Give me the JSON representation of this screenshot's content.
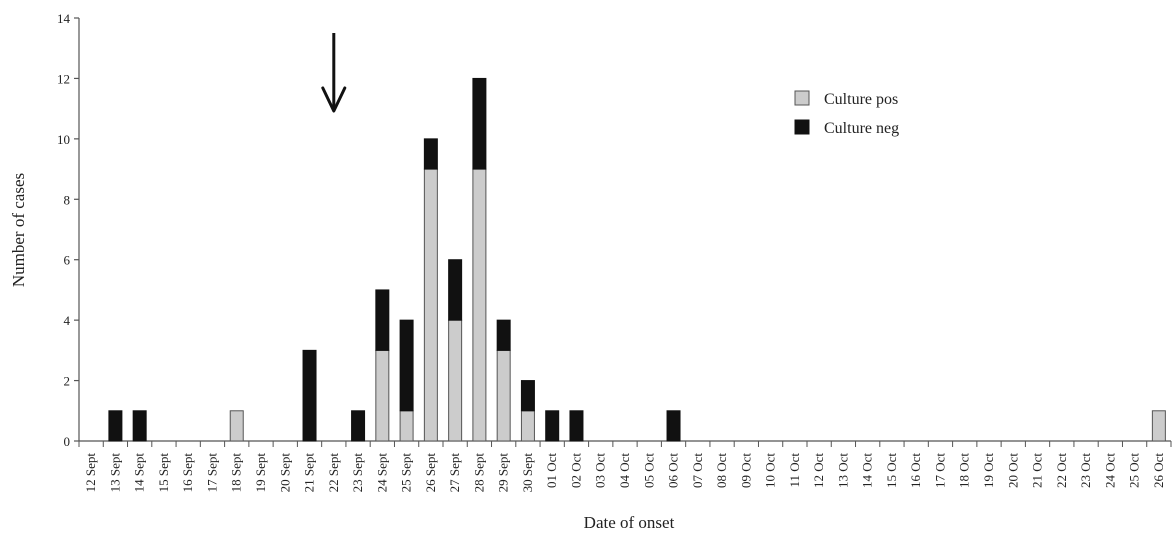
{
  "chart_data": {
    "type": "bar",
    "stacked": true,
    "xlabel": "Date of onset",
    "ylabel": "Number of cases",
    "ylim": [
      0,
      14
    ],
    "yticks": [
      0,
      2,
      4,
      6,
      8,
      10,
      12,
      14
    ],
    "grid": false,
    "legend_position": "top-right",
    "annotation": {
      "type": "arrow-down",
      "category": "22 Sept"
    },
    "categories": [
      "12 Sept",
      "13 Sept",
      "14 Sept",
      "15 Sept",
      "16 Sept",
      "17 Sept",
      "18 Sept",
      "19 Sept",
      "20 Sept",
      "21 Sept",
      "22 Sept",
      "23 Sept",
      "24 Sept",
      "25 Sept",
      "26 Sept",
      "27 Sept",
      "28 Sept",
      "29 Sept",
      "30 Sept",
      "01 Oct",
      "02 Oct",
      "03 Oct",
      "04 Oct",
      "05 Oct",
      "06 Oct",
      "07 Oct",
      "08 Oct",
      "09 Oct",
      "10 Oct",
      "11 Oct",
      "12 Oct",
      "13 Oct",
      "14 Oct",
      "15 Oct",
      "16 Oct",
      "17 Oct",
      "18 Oct",
      "19 Oct",
      "20 Oct",
      "21 Oct",
      "22 Oct",
      "23 Oct",
      "24 Oct",
      "25 Oct",
      "26 Oct"
    ],
    "series": [
      {
        "name": "Culture pos",
        "color": "#cccccc",
        "values": [
          0,
          0,
          0,
          0,
          0,
          0,
          1,
          0,
          0,
          0,
          0,
          0,
          3,
          1,
          9,
          4,
          9,
          3,
          1,
          0,
          0,
          0,
          0,
          0,
          0,
          0,
          0,
          0,
          0,
          0,
          0,
          0,
          0,
          0,
          0,
          0,
          0,
          0,
          0,
          0,
          0,
          0,
          0,
          0,
          1
        ]
      },
      {
        "name": "Culture neg",
        "color": "#111111",
        "values": [
          0,
          1,
          1,
          0,
          0,
          0,
          0,
          0,
          0,
          3,
          0,
          1,
          2,
          3,
          1,
          2,
          3,
          1,
          1,
          1,
          1,
          0,
          0,
          0,
          1,
          0,
          0,
          0,
          0,
          0,
          0,
          0,
          0,
          0,
          0,
          0,
          0,
          0,
          0,
          0,
          0,
          0,
          0,
          0,
          0
        ]
      }
    ]
  }
}
